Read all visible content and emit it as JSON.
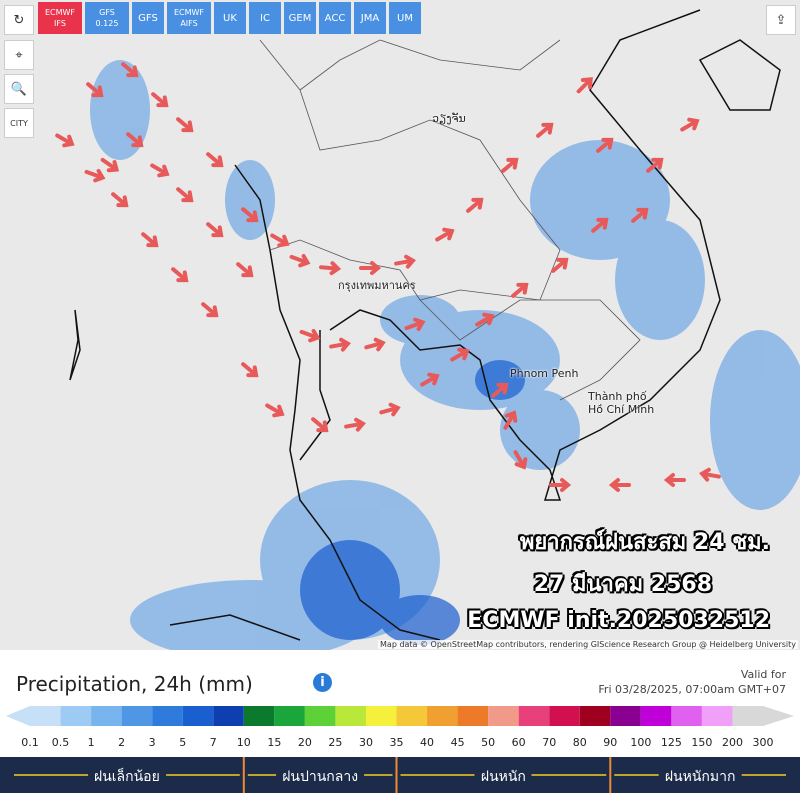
{
  "toolbar": {
    "models": [
      "ECMWF IFS",
      "GFS 0.125",
      "GFS",
      "ECMWF AIFS",
      "UK",
      "IC",
      "GEM",
      "ACC",
      "JMA",
      "UM"
    ],
    "active": 0,
    "city": "CITY"
  },
  "map": {
    "places": [
      "ວຽງຈັນ",
      "กรุงเทพมหานคร",
      "Phnom Penh",
      "Thành phố Hồ Chí Minh"
    ],
    "overlay": [
      "พยากรณ์ฝนสะสม 24 ชม.",
      "27 มีนาคม 2568",
      "ECMWF init.2025032512"
    ],
    "attribution": "Map data © OpenStreetMap contributors, rendering GIScience Research Group @ Heidelberg University"
  },
  "legend": {
    "title": "Precipitation, 24h (mm)",
    "info": "i",
    "valid_label": "Valid for",
    "valid_time": "Fri 03/28/2025, 07:00am GMT+07",
    "scale": [
      0.1,
      0.5,
      1,
      2,
      3,
      5,
      7,
      10,
      15,
      20,
      25,
      30,
      35,
      40,
      45,
      50,
      60,
      70,
      80,
      90,
      100,
      125,
      150,
      200,
      300
    ],
    "colors": [
      "#c6e0f8",
      "#9ecbf3",
      "#78b5ee",
      "#4f97e4",
      "#2e7bdb",
      "#1a5fcf",
      "#0d3fb0",
      "#0b7a2c",
      "#1aa63a",
      "#5ed138",
      "#b9e83a",
      "#f4f03c",
      "#f5c83a",
      "#f0a030",
      "#ec7a28",
      "#f29a8a",
      "#e8407a",
      "#d21050",
      "#a00020",
      "#8a0090",
      "#c000d8",
      "#e060f0",
      "#f0a0f8",
      "#d8d8d8"
    ],
    "categories": [
      "ฝนเล็กน้อย",
      "ฝนปานกลาง",
      "ฝนหนัก",
      "ฝนหนักมาก"
    ]
  }
}
